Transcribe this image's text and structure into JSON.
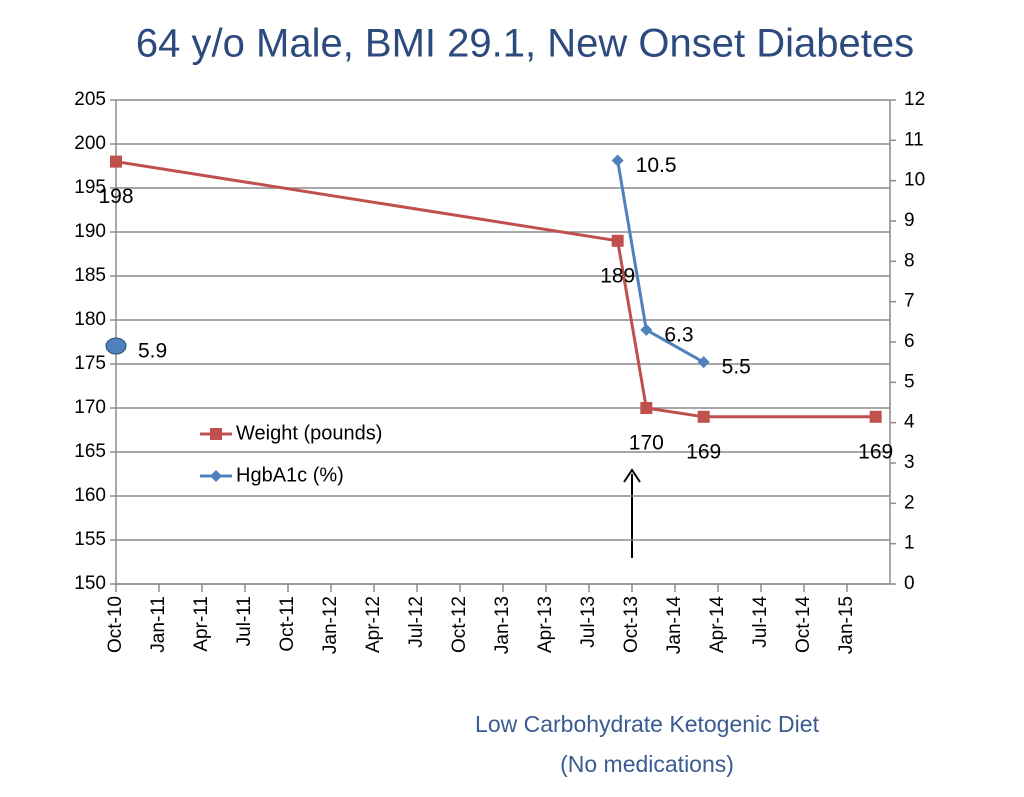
{
  "chart_data": {
    "type": "line",
    "title": "64 y/o Male, BMI 29.1, New Onset Diabetes",
    "annotations": [
      "Low Carbohydrate Ketogenic Diet",
      "(No medications)"
    ],
    "xlim": [
      "2010-10",
      "2015-04"
    ],
    "xticks": [
      {
        "value": "2010-10",
        "label": "Oct-10"
      },
      {
        "value": "2011-01",
        "label": "Jan-11"
      },
      {
        "value": "2011-04",
        "label": "Apr-11"
      },
      {
        "value": "2011-07",
        "label": "Jul-11"
      },
      {
        "value": "2011-10",
        "label": "Oct-11"
      },
      {
        "value": "2012-01",
        "label": "Jan-12"
      },
      {
        "value": "2012-04",
        "label": "Apr-12"
      },
      {
        "value": "2012-07",
        "label": "Jul-12"
      },
      {
        "value": "2012-10",
        "label": "Oct-12"
      },
      {
        "value": "2013-01",
        "label": "Jan-13"
      },
      {
        "value": "2013-04",
        "label": "Apr-13"
      },
      {
        "value": "2013-07",
        "label": "Jul-13"
      },
      {
        "value": "2013-10",
        "label": "Oct-13"
      },
      {
        "value": "2014-01",
        "label": "Jan-14"
      },
      {
        "value": "2014-04",
        "label": "Apr-14"
      },
      {
        "value": "2014-07",
        "label": "Jul-14"
      },
      {
        "value": "2014-10",
        "label": "Oct-14"
      },
      {
        "value": "2015-01",
        "label": "Jan-15"
      }
    ],
    "ylim": [
      150,
      205
    ],
    "yticks": [
      150,
      155,
      160,
      165,
      170,
      175,
      180,
      185,
      190,
      195,
      200,
      205
    ],
    "y2lim": [
      0,
      12
    ],
    "y2ticks": [
      0,
      1,
      2,
      3,
      4,
      5,
      6,
      7,
      8,
      9,
      10,
      11,
      12
    ],
    "grid": true,
    "legend": "center-left",
    "series": [
      {
        "name": "Weight (pounds)",
        "color": "#c0504d",
        "marker": "square",
        "axis": "y",
        "x": [
          "2010-10",
          "2013-09",
          "2013-11",
          "2014-03",
          "2015-03"
        ],
        "values": [
          198,
          189,
          170,
          169,
          169
        ]
      },
      {
        "name": "HgbA1c (%)",
        "color": "#4f81bd",
        "marker": "diamond",
        "axis": "y2",
        "x": [
          "2013-09",
          "2013-11",
          "2014-03"
        ],
        "values": [
          10.5,
          6.3,
          5.5
        ]
      },
      {
        "color": "#4f81bd",
        "marker": "ellipse",
        "axis": "y2",
        "x": [
          "2010-10"
        ],
        "values": [
          5.9
        ]
      }
    ]
  }
}
